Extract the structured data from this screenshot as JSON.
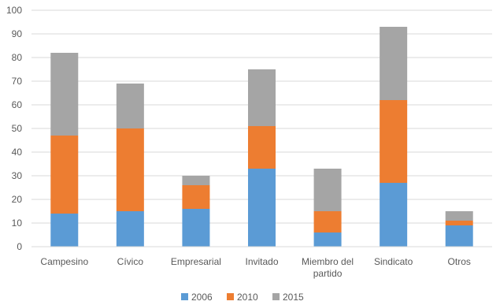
{
  "chart_data": {
    "type": "bar",
    "stacked": true,
    "categories": [
      "Campesino",
      "Cívico",
      "Empresarial",
      "Invitado",
      "Miembro del partido",
      "Sindicato",
      "Otros"
    ],
    "category_lines": [
      [
        "Campesino"
      ],
      [
        "Cívico"
      ],
      [
        "Empresarial"
      ],
      [
        "Invitado"
      ],
      [
        "Miembro del",
        "partido"
      ],
      [
        "Sindicato"
      ],
      [
        "Otros"
      ]
    ],
    "series": [
      {
        "name": "2006",
        "color": "#5b9bd5",
        "values": [
          14,
          15,
          16,
          33,
          6,
          27,
          9
        ]
      },
      {
        "name": "2010",
        "color": "#ed7d31",
        "values": [
          33,
          35,
          10,
          18,
          9,
          35,
          2
        ]
      },
      {
        "name": "2015",
        "color": "#a5a5a5",
        "values": [
          35,
          19,
          4,
          24,
          18,
          31,
          4
        ]
      }
    ],
    "ylim": [
      0,
      100
    ],
    "yticks": [
      0,
      10,
      20,
      30,
      40,
      50,
      60,
      70,
      80,
      90,
      100
    ],
    "grid": true,
    "legend_position": "bottom"
  }
}
